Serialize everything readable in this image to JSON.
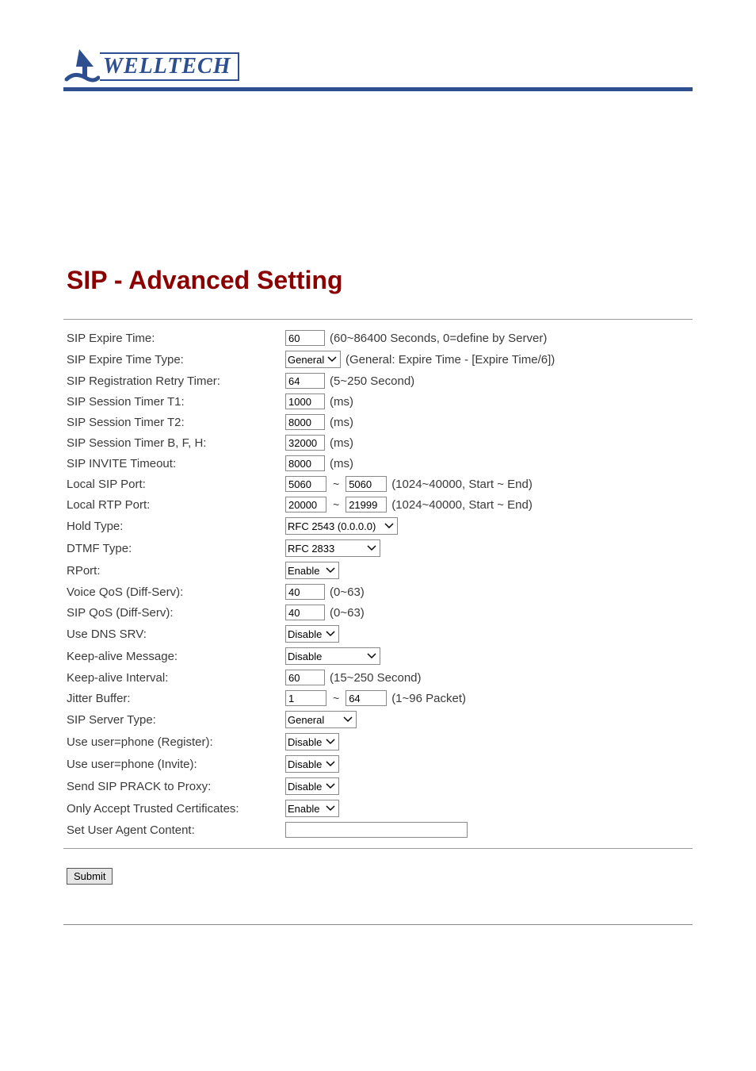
{
  "brand": {
    "name": "WELLTECH"
  },
  "title": "SIP - Advanced Setting",
  "colors": {
    "brand_blue": "#2d4f8f",
    "title_red": "#8b0000",
    "text": "#3a3a3a",
    "border_gray": "#888888",
    "btn_bg": "#e6e6e6"
  },
  "rows": [
    {
      "label": "SIP Expire Time:",
      "type": "text",
      "value": "60",
      "hint": "(60~86400 Seconds, 0=define by Server)"
    },
    {
      "label": "SIP Expire Time Type:",
      "type": "select",
      "value": "General",
      "sel_class": "w-sel-1",
      "hint": "(General: Expire Time - [Expire Time/6])"
    },
    {
      "label": "SIP Registration Retry Timer:",
      "type": "text",
      "value": "64",
      "hint": "(5~250 Second)"
    },
    {
      "label": "SIP Session Timer T1:",
      "type": "text",
      "value": "1000",
      "hint": "(ms)"
    },
    {
      "label": "SIP Session Timer T2:",
      "type": "text",
      "value": "8000",
      "hint": "(ms)"
    },
    {
      "label": "SIP Session Timer B, F, H:",
      "type": "text",
      "value": "32000",
      "hint": "(ms)"
    },
    {
      "label": "SIP INVITE Timeout:",
      "type": "text",
      "value": "8000",
      "hint": "(ms)"
    },
    {
      "label": "Local SIP Port:",
      "type": "range",
      "value1": "5060",
      "value2": "5060",
      "hint": "(1024~40000, Start ~ End)"
    },
    {
      "label": "Local RTP Port:",
      "type": "range",
      "value1": "20000",
      "value2": "21999",
      "hint": "(1024~40000, Start ~ End)"
    },
    {
      "label": "Hold Type:",
      "type": "select",
      "value": "RFC 2543 (0.0.0.0)",
      "sel_class": "w-sel-2"
    },
    {
      "label": "DTMF Type:",
      "type": "select",
      "value": "RFC 2833",
      "sel_class": "w-sel-5"
    },
    {
      "label": "RPort:",
      "type": "select",
      "value": "Enable",
      "sel_class": "w-sel-4"
    },
    {
      "label": "Voice QoS (Diff-Serv):",
      "type": "text-narrow",
      "value": "40",
      "hint": "(0~63)"
    },
    {
      "label": "SIP QoS (Diff-Serv):",
      "type": "text-narrow",
      "value": "40",
      "hint": "(0~63)"
    },
    {
      "label": "Use DNS SRV:",
      "type": "select",
      "value": "Disable",
      "sel_class": "w-sel-4"
    },
    {
      "label": "Keep-alive Message:",
      "type": "select",
      "value": "Disable",
      "sel_class": "w-sel-5"
    },
    {
      "label": "Keep-alive Interval:",
      "type": "text",
      "value": "60",
      "hint": "(15~250 Second)"
    },
    {
      "label": "Jitter Buffer:",
      "type": "range",
      "value1": "1",
      "value2": "64",
      "hint": "(1~96 Packet)"
    },
    {
      "label": "SIP Server Type:",
      "type": "select",
      "value": "General",
      "sel_class": "w-sel-6"
    },
    {
      "label": "Use user=phone (Register):",
      "type": "select",
      "value": "Disable",
      "sel_class": "w-sel-4"
    },
    {
      "label": "Use user=phone (Invite):",
      "type": "select",
      "value": "Disable",
      "sel_class": "w-sel-4"
    },
    {
      "label": "Send SIP PRACK to Proxy:",
      "type": "select",
      "value": "Disable",
      "sel_class": "w-sel-4"
    },
    {
      "label": "Only Accept Trusted Certificates:",
      "type": "select",
      "value": "Enable",
      "sel_class": "w-sel-4"
    },
    {
      "label": "Set User Agent Content:",
      "type": "text-wide",
      "value": ""
    }
  ],
  "submit_label": "Submit"
}
